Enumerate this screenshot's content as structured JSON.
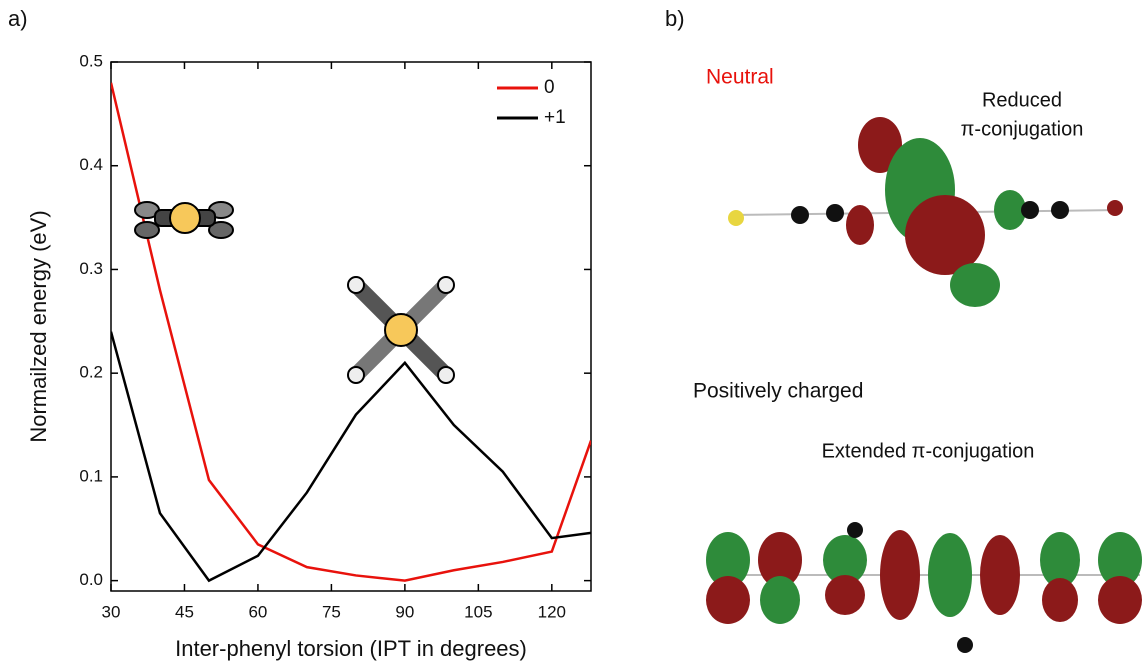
{
  "panel_labels": [
    "a)",
    "b)"
  ],
  "chart_data": {
    "type": "line",
    "x_label": "Inter-phenyl torsion (IPT in degrees)",
    "y_label": "Normailzed energy (eV)",
    "x": [
      30,
      40,
      50,
      60,
      70,
      80,
      90,
      100,
      110,
      120,
      128
    ],
    "series": [
      {
        "name": "0",
        "color": "#e8120c",
        "values": [
          0.48,
          0.28,
          0.097,
          0.035,
          0.013,
          0.005,
          0.0,
          0.01,
          0.018,
          0.028,
          0.135
        ]
      },
      {
        "name": "+1",
        "color": "#000000",
        "values": [
          0.24,
          0.065,
          0.0,
          0.024,
          0.085,
          0.16,
          0.21,
          0.15,
          0.105,
          0.041,
          0.046
        ]
      }
    ],
    "xlim": [
      30,
      128
    ],
    "ylim": [
      -0.01,
      0.5
    ],
    "xticks": [
      30,
      45,
      60,
      75,
      90,
      105,
      120
    ],
    "yticks": [
      {
        "value": 0,
        "label": "0.0"
      },
      0.1,
      0.2,
      0.3,
      0.4,
      0.5
    ],
    "legend": "upper right"
  },
  "panel_b": {
    "neutral": "Neutral",
    "reduced_1": "Reduced",
    "reduced_2": "π-conjugation",
    "charged": "Positively charged",
    "extended": "Extended π-conjugation"
  }
}
